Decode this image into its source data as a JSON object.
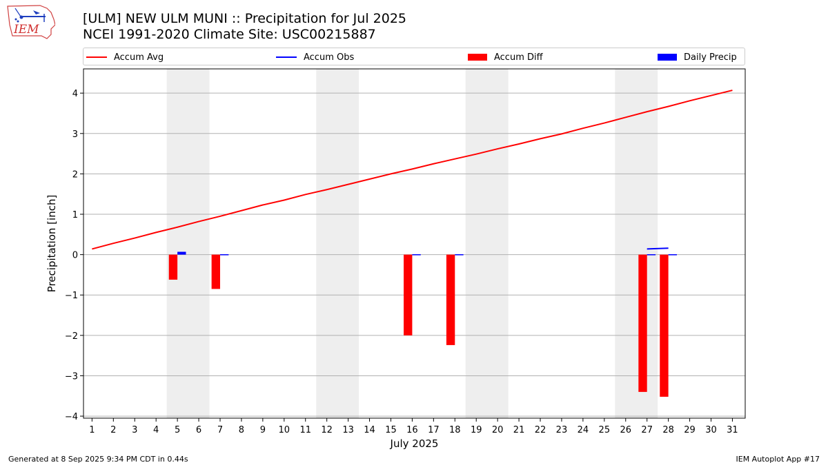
{
  "header": {
    "title_line1": "[ULM] NEW ULM MUNI :: Precipitation for Jul 2025",
    "title_line2": "NCEI 1991-2020 Climate Site: USC00215887",
    "logo_text": "IEM"
  },
  "footer": {
    "generated": "Generated at 8 Sep 2025 9:34 PM CDT in 0.44s",
    "app": "IEM Autoplot App #17"
  },
  "legend": {
    "accum_avg": "Accum Avg",
    "accum_obs": "Accum Obs",
    "accum_diff": "Accum Diff",
    "daily_precip": "Daily Precip"
  },
  "colors": {
    "accum_avg": "#ff0000",
    "accum_obs": "#0000ff",
    "accum_diff": "#ff0000",
    "daily_precip": "#0000ff",
    "weekend_shade": "#eeeeee",
    "grid": "#b0b0b0"
  },
  "chart_data": {
    "type": "bar",
    "xlabel": "July 2025",
    "ylabel": "Precipitation [inch]",
    "xlim": [
      0.6,
      31.6
    ],
    "ylim": [
      -4.05,
      4.6
    ],
    "yticks": [
      -4,
      -3,
      -2,
      -1,
      0,
      1,
      2,
      3,
      4
    ],
    "ytick_labels": [
      "−4",
      "−3",
      "−2",
      "−1",
      "0",
      "1",
      "2",
      "3",
      "4"
    ],
    "days": [
      1,
      2,
      3,
      4,
      5,
      6,
      7,
      8,
      9,
      10,
      11,
      12,
      13,
      14,
      15,
      16,
      17,
      18,
      19,
      20,
      21,
      22,
      23,
      24,
      25,
      26,
      27,
      28,
      29,
      30,
      31
    ],
    "grid": "horizontal",
    "legend_position": "top",
    "weekends": [
      [
        5,
        6
      ],
      [
        12,
        13
      ],
      [
        19,
        20
      ],
      [
        26,
        27
      ]
    ],
    "series": [
      {
        "name": "Accum Avg",
        "kind": "line",
        "values": [
          0.14,
          0.28,
          0.41,
          0.55,
          0.68,
          0.82,
          0.95,
          1.09,
          1.23,
          1.35,
          1.49,
          1.61,
          1.74,
          1.87,
          2.0,
          2.12,
          2.25,
          2.37,
          2.49,
          2.62,
          2.74,
          2.87,
          2.99,
          3.13,
          3.26,
          3.4,
          3.54,
          3.67,
          3.81,
          3.94,
          4.07
        ]
      },
      {
        "name": "Accum Obs",
        "kind": "line",
        "days": [
          27,
          28
        ],
        "values": [
          0.14,
          0.16
        ]
      },
      {
        "name": "Accum Diff",
        "kind": "bar",
        "days": [
          5,
          7,
          16,
          18,
          27,
          28
        ],
        "values": [
          -0.62,
          -0.85,
          -2.0,
          -2.24,
          -3.4,
          -3.52
        ]
      },
      {
        "name": "Daily Precip",
        "kind": "bar",
        "days": [
          5,
          7,
          16,
          18,
          27,
          28
        ],
        "values": [
          0.07,
          0.01,
          0.01,
          0.01,
          0.01,
          0.01
        ]
      }
    ]
  }
}
